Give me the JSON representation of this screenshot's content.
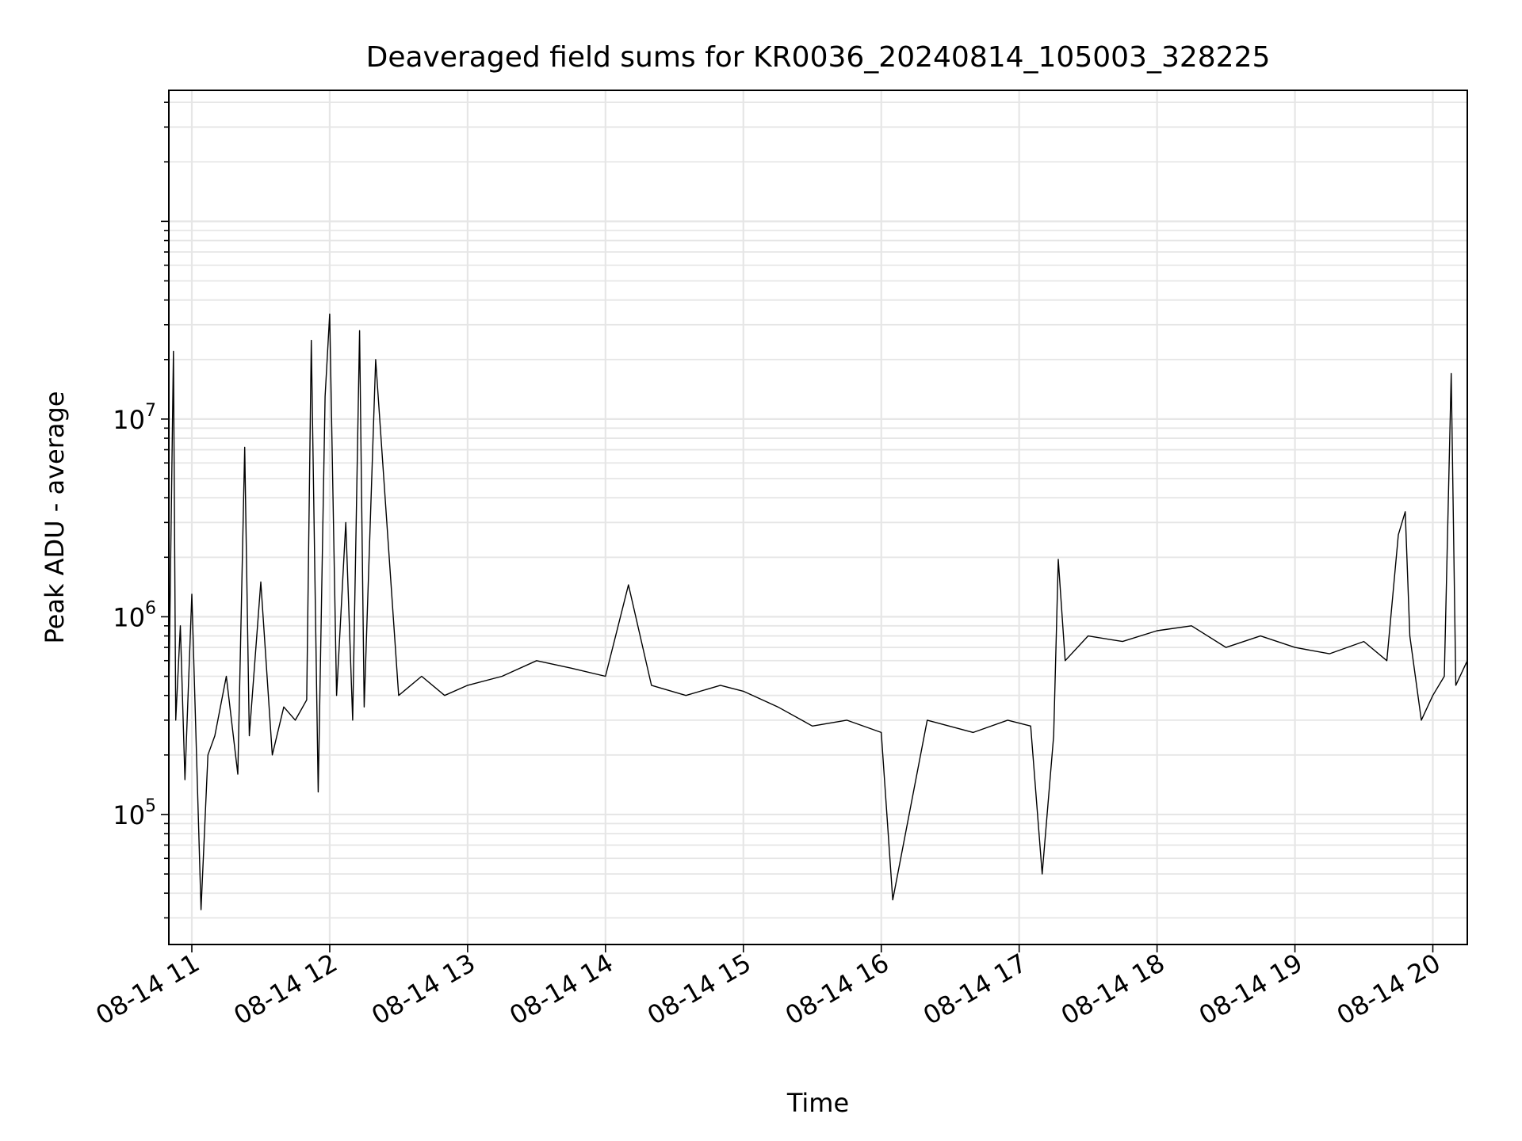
{
  "chart_data": {
    "type": "line",
    "title": "Deaveraged field sums for KR0036_20240814_105003_328225",
    "xlabel": "Time",
    "ylabel": "Peak ADU - average",
    "x_axis": {
      "kind": "time",
      "range": [
        "2024-08-14 10:50",
        "2024-08-14 20:15"
      ],
      "tick_labels": [
        "08-14 11",
        "08-14 12",
        "08-14 13",
        "08-14 14",
        "08-14 15",
        "08-14 16",
        "08-14 17",
        "08-14 18",
        "08-14 19",
        "08-14 20"
      ],
      "tick_rotation_deg": 30
    },
    "y_axis": {
      "scale": "log",
      "ylim": [
        22000,
        460000000
      ],
      "tick_values": [
        100000,
        1000000,
        10000000
      ],
      "tick_labels": [
        {
          "base": "10",
          "exp": "5"
        },
        {
          "base": "10",
          "exp": "6"
        },
        {
          "base": "10",
          "exp": "7"
        }
      ]
    },
    "grid": true,
    "legend": "none",
    "line_color": "#000000",
    "series": [
      {
        "x": [
          "2024-08-14 10:50",
          "2024-08-14 10:52",
          "2024-08-14 10:53",
          "2024-08-14 10:55",
          "2024-08-14 10:57",
          "2024-08-14 11:00",
          "2024-08-14 11:04",
          "2024-08-14 11:07",
          "2024-08-14 11:10",
          "2024-08-14 11:15",
          "2024-08-14 11:20",
          "2024-08-14 11:23",
          "2024-08-14 11:25",
          "2024-08-14 11:30",
          "2024-08-14 11:35",
          "2024-08-14 11:40",
          "2024-08-14 11:45",
          "2024-08-14 11:50",
          "2024-08-14 11:52",
          "2024-08-14 11:55",
          "2024-08-14 11:58",
          "2024-08-14 12:00",
          "2024-08-14 12:03",
          "2024-08-14 12:07",
          "2024-08-14 12:10",
          "2024-08-14 12:13",
          "2024-08-14 12:15",
          "2024-08-14 12:20",
          "2024-08-14 12:30",
          "2024-08-14 12:40",
          "2024-08-14 12:50",
          "2024-08-14 13:00",
          "2024-08-14 13:15",
          "2024-08-14 13:30",
          "2024-08-14 13:45",
          "2024-08-14 14:00",
          "2024-08-14 14:10",
          "2024-08-14 14:20",
          "2024-08-14 14:35",
          "2024-08-14 14:50",
          "2024-08-14 15:00",
          "2024-08-14 15:15",
          "2024-08-14 15:30",
          "2024-08-14 15:45",
          "2024-08-14 16:00",
          "2024-08-14 16:05",
          "2024-08-14 16:20",
          "2024-08-14 16:40",
          "2024-08-14 16:55",
          "2024-08-14 17:05",
          "2024-08-14 17:10",
          "2024-08-14 17:15",
          "2024-08-14 17:17",
          "2024-08-14 17:20",
          "2024-08-14 17:30",
          "2024-08-14 17:45",
          "2024-08-14 18:00",
          "2024-08-14 18:15",
          "2024-08-14 18:30",
          "2024-08-14 18:45",
          "2024-08-14 19:00",
          "2024-08-14 19:15",
          "2024-08-14 19:30",
          "2024-08-14 19:40",
          "2024-08-14 19:45",
          "2024-08-14 19:48",
          "2024-08-14 19:50",
          "2024-08-14 19:55",
          "2024-08-14 20:00",
          "2024-08-14 20:05",
          "2024-08-14 20:08",
          "2024-08-14 20:10",
          "2024-08-14 20:15"
        ],
        "y": [
          400000,
          22000000,
          300000,
          900000,
          150000,
          1300000,
          33000,
          200000,
          250000,
          500000,
          160000,
          7200000,
          250000,
          1500000,
          200000,
          350000,
          300000,
          380000,
          25000000,
          130000,
          13000000,
          34000000,
          400000,
          3000000,
          300000,
          28000000,
          350000,
          20000000,
          400000,
          500000,
          400000,
          450000,
          500000,
          600000,
          550000,
          500000,
          1450000,
          450000,
          400000,
          450000,
          420000,
          350000,
          280000,
          300000,
          260000,
          37000,
          300000,
          260000,
          300000,
          280000,
          50000,
          250000,
          1950000,
          600000,
          800000,
          750000,
          850000,
          900000,
          700000,
          800000,
          700000,
          650000,
          750000,
          600000,
          2600000,
          3400000,
          800000,
          300000,
          400000,
          500000,
          17000000,
          450000,
          600000
        ]
      }
    ]
  }
}
